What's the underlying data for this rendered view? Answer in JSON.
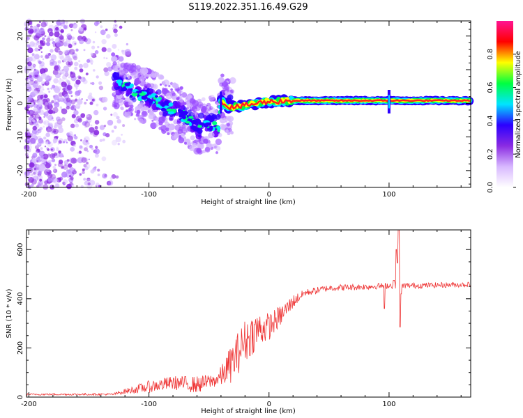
{
  "title": "S119.2022.351.16.49.G29",
  "colors": {
    "snr_line": "#ee3333",
    "trace_core": "#ff2020"
  },
  "chart_data": [
    {
      "type": "heatmap",
      "xlabel": "Height of straight line (km)",
      "ylabel": "Frequency (Hz)",
      "xlim": [
        -202,
        168
      ],
      "ylim": [
        -25,
        24.5
      ],
      "xticks": [
        -200,
        -100,
        0,
        100
      ],
      "xtick_labels": [
        "-200",
        "-100",
        "0",
        "100"
      ],
      "yticks": [
        -20,
        -10,
        0,
        10,
        20
      ],
      "ytick_labels": [
        "-20",
        "-10",
        "0",
        "10",
        "20"
      ],
      "colorbar": {
        "label": "Normalized spectral amplitude",
        "range": [
          0,
          1
        ],
        "ticks": [
          0.0,
          0.2,
          0.4,
          0.6,
          0.8
        ],
        "tick_labels": [
          "0.0",
          "0.2",
          "0.4",
          "0.6",
          "0.8"
        ],
        "colormap": [
          "#ffffff",
          "#d8b8ff",
          "#8a2be2",
          "#2b00ff",
          "#00e5ff",
          "#00ff40",
          "#ffff00",
          "#ff0000",
          "#ff1493"
        ]
      },
      "trace": [
        {
          "x": -130,
          "y": 7
        },
        {
          "x": -120,
          "y": 5
        },
        {
          "x": -110,
          "y": 3
        },
        {
          "x": -100,
          "y": 2
        },
        {
          "x": -90,
          "y": 0
        },
        {
          "x": -80,
          "y": -2
        },
        {
          "x": -70,
          "y": -4
        },
        {
          "x": -60,
          "y": -7
        },
        {
          "x": -50,
          "y": -6
        },
        {
          "x": -42,
          "y": -7
        },
        {
          "x": -40,
          "y": 1
        },
        {
          "x": -35,
          "y": -1
        },
        {
          "x": -25,
          "y": -1
        },
        {
          "x": -10,
          "y": 0
        },
        {
          "x": 0,
          "y": 0.5
        },
        {
          "x": 20,
          "y": 0.8
        },
        {
          "x": 50,
          "y": 0.8
        },
        {
          "x": 100,
          "y": 0.8
        },
        {
          "x": 168,
          "y": 0.8
        }
      ],
      "spur_x": 100
    },
    {
      "type": "line",
      "xlabel": "Height of straight line (km)",
      "ylabel": "SNR (10 * v/v)",
      "xlim": [
        -202,
        168
      ],
      "ylim": [
        0,
        680
      ],
      "xticks": [
        -200,
        -100,
        0,
        100
      ],
      "xtick_labels": [
        "-200",
        "-100",
        "0",
        "100"
      ],
      "yticks": [
        0,
        200,
        400,
        600
      ],
      "ytick_labels": [
        "0",
        "200",
        "400",
        "600"
      ],
      "series": [
        {
          "baseline": [
            {
              "x": -202,
              "y": 10
            },
            {
              "x": -130,
              "y": 10
            },
            {
              "x": -120,
              "y": 20
            },
            {
              "x": -100,
              "y": 35
            },
            {
              "x": -80,
              "y": 50
            },
            {
              "x": -60,
              "y": 40
            },
            {
              "x": -45,
              "y": 60
            },
            {
              "x": -40,
              "y": 70
            },
            {
              "x": -30,
              "y": 120
            },
            {
              "x": -20,
              "y": 200
            },
            {
              "x": -10,
              "y": 250
            },
            {
              "x": 0,
              "y": 270
            },
            {
              "x": 10,
              "y": 320
            },
            {
              "x": 20,
              "y": 380
            },
            {
              "x": 30,
              "y": 420
            },
            {
              "x": 50,
              "y": 440
            },
            {
              "x": 80,
              "y": 445
            },
            {
              "x": 100,
              "y": 450
            },
            {
              "x": 120,
              "y": 450
            },
            {
              "x": 168,
              "y": 455
            }
          ],
          "noise": [
            {
              "x": -202,
              "y": 5
            },
            {
              "x": -130,
              "y": 6
            },
            {
              "x": -120,
              "y": 15
            },
            {
              "x": -100,
              "y": 35
            },
            {
              "x": -80,
              "y": 40
            },
            {
              "x": -60,
              "y": 50
            },
            {
              "x": -45,
              "y": 40
            },
            {
              "x": -40,
              "y": 60
            },
            {
              "x": -30,
              "y": 120
            },
            {
              "x": -20,
              "y": 130
            },
            {
              "x": -10,
              "y": 110
            },
            {
              "x": 0,
              "y": 80
            },
            {
              "x": 10,
              "y": 60
            },
            {
              "x": 20,
              "y": 40
            },
            {
              "x": 30,
              "y": 20
            },
            {
              "x": 168,
              "y": 15
            }
          ],
          "events": [
            {
              "x": 96,
              "y": 360
            },
            {
              "x": 104,
              "y": 475
            },
            {
              "x": 106,
              "y": 600
            },
            {
              "x": 107,
              "y": 545
            },
            {
              "x": 108,
              "y": 680
            },
            {
              "x": 109,
              "y": 285
            },
            {
              "x": 110,
              "y": 420
            }
          ]
        }
      ]
    }
  ]
}
